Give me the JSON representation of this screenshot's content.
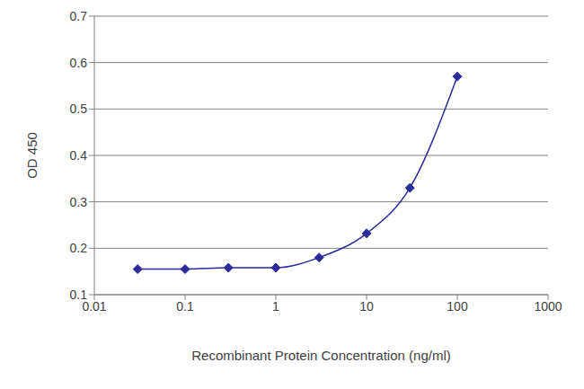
{
  "chart_data": {
    "type": "line",
    "x_label": "Recombinant Protein Concentration (ng/ml)",
    "y_label": "OD 450",
    "x": [
      0.03,
      0.1,
      0.3,
      1,
      3,
      10,
      30,
      100
    ],
    "values": [
      0.155,
      0.155,
      0.158,
      0.158,
      0.18,
      0.232,
      0.33,
      0.57
    ],
    "color": "#2b2b9c",
    "marker": "diamond",
    "line_style": "solid",
    "log": "x",
    "xlim": [
      0.01,
      1000
    ],
    "xticks": [
      0.01,
      0.1,
      1,
      10,
      100,
      1000
    ],
    "ylim": [
      0.1,
      0.7
    ],
    "yticks": [
      0.1,
      0.2,
      0.3,
      0.4,
      0.5,
      0.6,
      0.7
    ],
    "grid": true
  }
}
